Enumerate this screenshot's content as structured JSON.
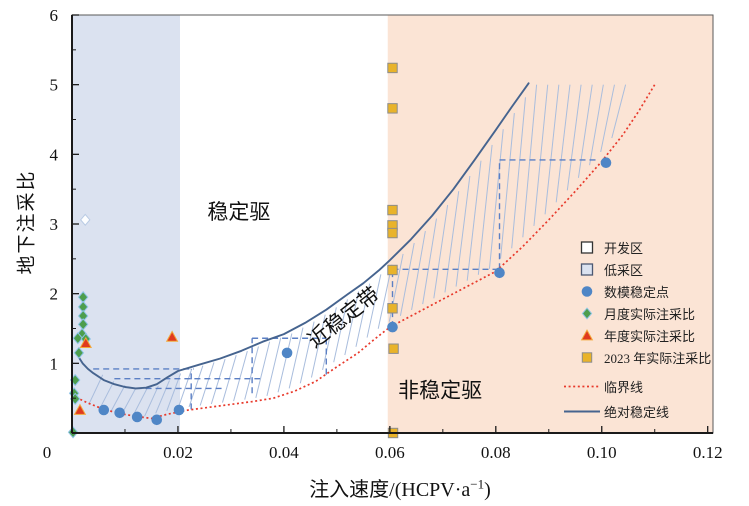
{
  "chart_data": {
    "type": "scatter",
    "title": "",
    "xlabel_prefix": "注入速度/(HCPV·a",
    "xlabel_sup": "−1",
    "xlabel_suffix": ")",
    "ylabel": "地下注采比",
    "xlim": [
      0,
      0.121
    ],
    "ylim": [
      0,
      6
    ],
    "grid": false,
    "x_ticks": [
      {
        "v": 0,
        "label": "0",
        "dx": -25
      },
      {
        "v": 0.02,
        "label": "0.02",
        "dx": 0
      },
      {
        "v": 0.04,
        "label": "0.04",
        "dx": 0
      },
      {
        "v": 0.06,
        "label": "0.06",
        "dx": 0
      },
      {
        "v": 0.08,
        "label": "0.08",
        "dx": 0
      },
      {
        "v": 0.1,
        "label": "0.10",
        "dx": 0
      },
      {
        "v": 0.12,
        "label": "0.12",
        "dx": 0
      }
    ],
    "y_ticks": [
      {
        "v": 1,
        "label": "1"
      },
      {
        "v": 2,
        "label": "2"
      },
      {
        "v": 3,
        "label": "3"
      },
      {
        "v": 4,
        "label": "4"
      },
      {
        "v": 5,
        "label": "5"
      },
      {
        "v": 6,
        "label": "6"
      }
    ],
    "x_minor_step": 0.01,
    "y_minor_step": 0.5,
    "regions": [
      {
        "name": "低采区",
        "x1": 0,
        "x2": 0.0204,
        "color": "#dbe2f0"
      },
      {
        "name": "开发区",
        "x1": 0.0204,
        "x2": 0.0596,
        "color": "#ffffff"
      },
      {
        "name": "非稳定驱区",
        "x1": 0.0596,
        "x2": 0.121,
        "color": "#fbe4d5"
      }
    ],
    "region_labels": [
      {
        "text": "稳定驱",
        "x": 0.0315,
        "y": 3.07,
        "rotate": 0
      },
      {
        "text": "近稳定带",
        "x": 0.0521,
        "y": 1.58,
        "rotate": -38
      },
      {
        "text": "非稳定驱",
        "x": 0.0695,
        "y": 0.51,
        "rotate": 0
      }
    ],
    "series": {
      "model_stable_points": {
        "name": "数模稳定点",
        "marker": "circle",
        "points": [
          [
            0.006,
            0.33
          ],
          [
            0.009,
            0.29
          ],
          [
            0.0123,
            0.23
          ],
          [
            0.016,
            0.19
          ],
          [
            0.0202,
            0.33
          ],
          [
            0.0406,
            1.15
          ],
          [
            0.0605,
            1.52
          ],
          [
            0.0807,
            2.3
          ],
          [
            0.1008,
            3.88
          ]
        ]
      },
      "monthly_actual": {
        "name": "月度实际注采比",
        "marker": "diamond",
        "points": [
          [
            0.0021,
            1.95
          ],
          [
            0.0021,
            1.81
          ],
          [
            0.0021,
            1.68
          ],
          [
            0.0021,
            1.56
          ],
          [
            0.0019,
            1.42
          ],
          [
            0.0011,
            1.36
          ],
          [
            0.0026,
            1.35
          ],
          [
            0.0013,
            1.15
          ],
          [
            0.0006,
            0.76
          ],
          [
            0.0004,
            0.57
          ],
          [
            0.0006,
            0.49
          ],
          [
            0.0002,
            0.01
          ]
        ]
      },
      "annual_actual": {
        "name": "年度实际注采比",
        "marker": "triangle",
        "points": [
          [
            0.0026,
            1.29
          ],
          [
            0.0015,
            0.33
          ],
          [
            0.0189,
            1.38
          ]
        ]
      },
      "actual_2023": {
        "name": "2023 年实际注采比",
        "marker": "square",
        "points": [
          [
            0.0605,
            5.24
          ],
          [
            0.0605,
            4.66
          ],
          [
            0.0605,
            3.2
          ],
          [
            0.0605,
            2.98
          ],
          [
            0.0605,
            2.87
          ],
          [
            0.0605,
            2.34
          ],
          [
            0.0605,
            1.79
          ],
          [
            0.0607,
            1.21
          ],
          [
            0.0606,
            0.0
          ]
        ]
      },
      "faded_point": {
        "name": "",
        "marker": "diamond-pale",
        "points": [
          [
            0.0025,
            3.06
          ]
        ]
      }
    },
    "lines": {
      "critical": {
        "name": "临界线",
        "style": "dotted",
        "points": [
          [
            0.0,
            0.54
          ],
          [
            0.003,
            0.43
          ],
          [
            0.006,
            0.34
          ],
          [
            0.009,
            0.28
          ],
          [
            0.012,
            0.24
          ],
          [
            0.015,
            0.21
          ],
          [
            0.018,
            0.27
          ],
          [
            0.022,
            0.33
          ],
          [
            0.026,
            0.37
          ],
          [
            0.03,
            0.41
          ],
          [
            0.034,
            0.45
          ],
          [
            0.038,
            0.5
          ],
          [
            0.042,
            0.6
          ],
          [
            0.046,
            0.74
          ],
          [
            0.05,
            0.95
          ],
          [
            0.054,
            1.15
          ],
          [
            0.057,
            1.34
          ],
          [
            0.06,
            1.52
          ],
          [
            0.065,
            1.72
          ],
          [
            0.07,
            1.92
          ],
          [
            0.075,
            2.12
          ],
          [
            0.08,
            2.32
          ],
          [
            0.085,
            2.67
          ],
          [
            0.09,
            3.06
          ],
          [
            0.095,
            3.47
          ],
          [
            0.1,
            3.9
          ],
          [
            0.104,
            4.28
          ],
          [
            0.107,
            4.62
          ],
          [
            0.11,
            5.0
          ]
        ]
      },
      "absolute_stable": {
        "name": "绝对稳定线",
        "style": "solid",
        "points": [
          [
            0.001,
            1.12
          ],
          [
            0.002,
            1.0
          ],
          [
            0.003,
            0.92
          ],
          [
            0.004,
            0.86
          ],
          [
            0.006,
            0.76
          ],
          [
            0.008,
            0.7
          ],
          [
            0.01,
            0.66
          ],
          [
            0.012,
            0.64
          ],
          [
            0.014,
            0.65
          ],
          [
            0.016,
            0.7
          ],
          [
            0.018,
            0.8
          ],
          [
            0.02,
            0.89
          ],
          [
            0.024,
            0.98
          ],
          [
            0.028,
            1.07
          ],
          [
            0.032,
            1.18
          ],
          [
            0.036,
            1.31
          ],
          [
            0.04,
            1.42
          ],
          [
            0.044,
            1.58
          ],
          [
            0.048,
            1.77
          ],
          [
            0.052,
            1.99
          ],
          [
            0.055,
            2.15
          ],
          [
            0.058,
            2.34
          ],
          [
            0.06,
            2.48
          ],
          [
            0.064,
            2.78
          ],
          [
            0.068,
            3.12
          ],
          [
            0.072,
            3.5
          ],
          [
            0.076,
            3.92
          ],
          [
            0.08,
            4.35
          ],
          [
            0.083,
            4.68
          ],
          [
            0.0862,
            5.02
          ]
        ]
      }
    },
    "dashed_guides": [
      [
        0.004,
        0.92,
        0.023,
        0.92
      ],
      [
        0.008,
        0.78,
        0.0355,
        0.78
      ],
      [
        0.012,
        0.64,
        0.0285,
        0.64
      ],
      [
        0.0225,
        0.34,
        0.0225,
        0.92
      ],
      [
        0.034,
        0.57,
        0.034,
        1.36
      ],
      [
        0.034,
        1.36,
        0.048,
        1.36
      ],
      [
        0.048,
        0.84,
        0.048,
        1.36
      ],
      [
        0.0605,
        1.52,
        0.0605,
        2.35
      ],
      [
        0.0605,
        2.35,
        0.0807,
        2.35
      ],
      [
        0.0807,
        2.35,
        0.0807,
        3.92
      ],
      [
        0.0807,
        3.92,
        0.0995,
        3.92
      ]
    ],
    "hatch": {
      "x_start": 0.0045,
      "x_end": 0.1035,
      "step": 0.0021,
      "cap_y": 5.0,
      "lean": 0.0013,
      "bottom_gap": 0.03
    },
    "colors": {
      "region_low": "#dbe2f0",
      "region_unstable": "#fbe4d5",
      "critical": "#e8392b",
      "stable": "#46648f",
      "hatch": "#a9bddd",
      "dash": "#5b7fc4",
      "circle": "#4f86c6",
      "diamond": "#4d9e4d",
      "diamond_stroke": "#8fc4e8",
      "triangle": "#e0391f",
      "triangle_stroke": "#f2a93b",
      "square": "#e9b32a",
      "square_stroke": "#8c8c8c",
      "pale_fill": "#fdfeff",
      "pale_stroke": "#b9cbe4",
      "axis": "#1a1a1a",
      "frame": "#595959",
      "text": "#111111"
    }
  },
  "legend": {
    "items": [
      {
        "label": "开发区",
        "marker": "square-open"
      },
      {
        "label": "低采区",
        "marker": "square-low"
      },
      {
        "label": "数模稳定点",
        "marker": "circle"
      },
      {
        "label": "月度实际注采比",
        "marker": "diamond"
      },
      {
        "label": "年度实际注采比",
        "marker": "triangle"
      },
      {
        "label": "2023 年实际注采比",
        "marker": "square"
      },
      {
        "label": "临界线",
        "marker": "line-dotted"
      },
      {
        "label": "绝对稳定线",
        "marker": "line-solid"
      }
    ]
  }
}
